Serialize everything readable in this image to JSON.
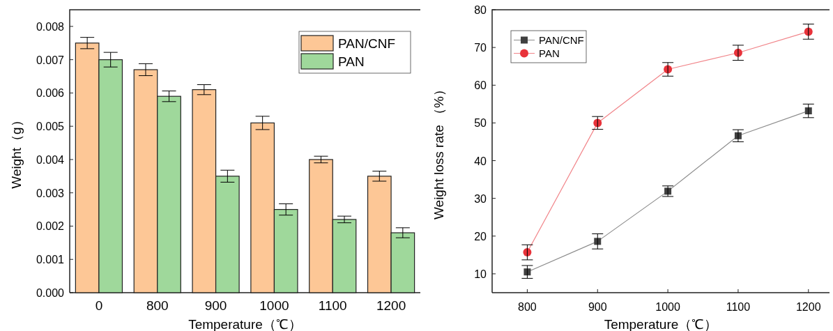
{
  "chart_data": [
    {
      "type": "bar",
      "xlabel": "Temperature（℃）",
      "ylabel": "Weight（g）",
      "categories": [
        "0",
        "800",
        "900",
        "1000",
        "1100",
        "1200"
      ],
      "series": [
        {
          "name": "PAN/CNF",
          "color": "#fdc796",
          "values": [
            0.0075,
            0.0067,
            0.0061,
            0.0051,
            0.004,
            0.0035
          ],
          "errors": [
            0.00017,
            0.00018,
            0.00015,
            0.0002,
            0.0001,
            0.00015
          ]
        },
        {
          "name": "PAN",
          "color": "#9fd89b",
          "values": [
            0.007,
            0.0059,
            0.0035,
            0.0025,
            0.0022,
            0.0018
          ],
          "errors": [
            0.00022,
            0.00016,
            0.00018,
            0.00017,
            0.0001,
            0.00015
          ]
        }
      ],
      "ylim": [
        0,
        0.0085
      ],
      "yticks": [
        {
          "value": 0,
          "label": "0.000"
        },
        {
          "value": 0.001,
          "label": "0.001"
        },
        {
          "value": 0.002,
          "label": "0.002"
        },
        {
          "value": 0.003,
          "label": "0.003"
        },
        {
          "value": 0.004,
          "label": "0.004"
        },
        {
          "value": 0.005,
          "label": "0.005"
        },
        {
          "value": 0.006,
          "label": "0.006"
        },
        {
          "value": 0.007,
          "label": "0.007"
        },
        {
          "value": 0.008,
          "label": "0.008"
        }
      ],
      "legend": "top right"
    },
    {
      "type": "line",
      "xlabel": "Temperature（℃）",
      "ylabel": "Weight loss rate （%）",
      "x": [
        800,
        900,
        1000,
        1100,
        1200
      ],
      "series": [
        {
          "name": "PAN/CNF",
          "color": "#404040",
          "marker": "square",
          "values": [
            10.5,
            18.6,
            31.9,
            46.6,
            53.2
          ],
          "errors": [
            1.7,
            2.0,
            1.4,
            1.6,
            1.8
          ]
        },
        {
          "name": "PAN",
          "color": "#e8323a",
          "marker": "circle",
          "values": [
            15.7,
            50.0,
            64.2,
            68.6,
            74.2
          ],
          "errors": [
            2.0,
            1.7,
            1.8,
            2.0,
            2.0
          ]
        }
      ],
      "xlim": [
        750,
        1230
      ],
      "xticks": [
        800,
        900,
        1000,
        1100,
        1200
      ],
      "ylim": [
        5,
        80
      ],
      "yticks": [
        10,
        20,
        30,
        40,
        50,
        60,
        70,
        80
      ],
      "legend": "top left"
    }
  ]
}
